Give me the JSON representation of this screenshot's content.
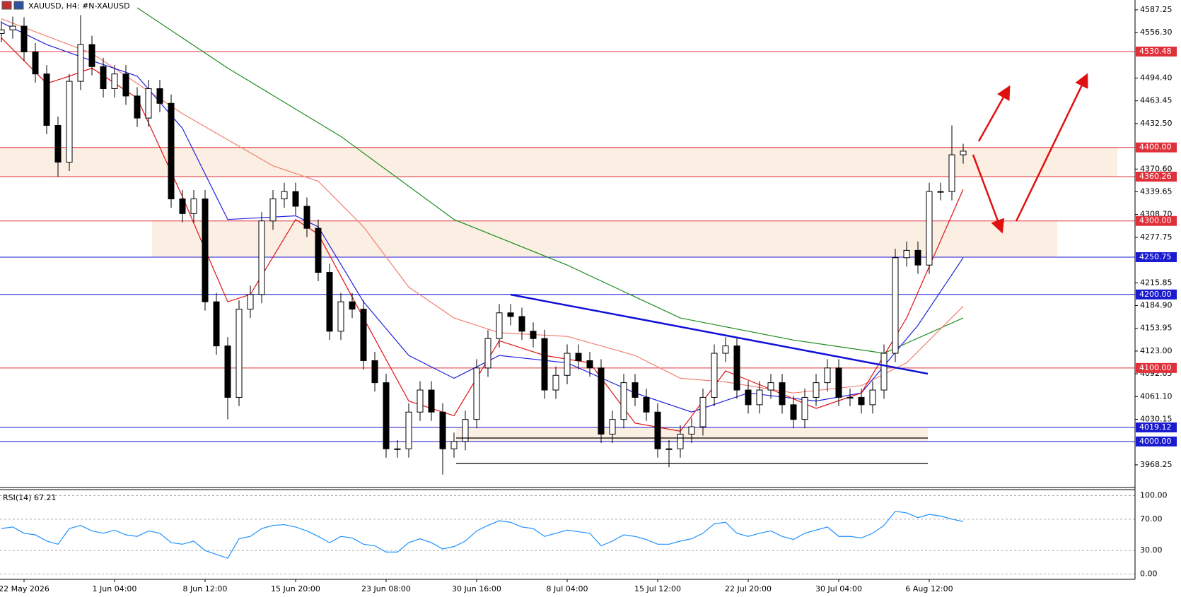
{
  "chart_data": [
    {
      "type": "candlestick",
      "title": "XAUUSD, H4: #N-XAUUSD",
      "color": "#000000",
      "categories": [
        null,
        null,
        "22 May 2026",
        null,
        null,
        null,
        null,
        null,
        null,
        null,
        "1 Jun 04:00",
        null,
        null,
        null,
        null,
        null,
        null,
        null,
        "8 Jun 12:00",
        null,
        null,
        null,
        null,
        null,
        null,
        null,
        "15 Jun 20:00",
        null,
        null,
        null,
        null,
        null,
        null,
        null,
        "23 Jun 08:00",
        null,
        null,
        null,
        null,
        null,
        null,
        null,
        "30 Jun 16:00",
        null,
        null,
        null,
        null,
        null,
        null,
        null,
        "8 Jul 04:00",
        null,
        null,
        null,
        null,
        null,
        null,
        null,
        "15 Jul 12:00",
        null,
        null,
        null,
        null,
        null,
        null,
        null,
        "22 Jul 20:00",
        null,
        null,
        null,
        null,
        null,
        null,
        null,
        "30 Jul 04:00",
        null,
        null,
        null,
        null,
        null,
        null,
        null,
        "6 Aug 12:00",
        null,
        null,
        null
      ],
      "open": [
        4555,
        4560,
        4565,
        4530,
        4500,
        4430,
        4380,
        4490,
        4540,
        4510,
        4480,
        4500,
        4470,
        4440,
        4480,
        4460,
        4330,
        4310,
        4330,
        4190,
        4130,
        4060,
        4180,
        4200,
        4300,
        4330,
        4340,
        4320,
        4290,
        4230,
        4150,
        4190,
        4180,
        4110,
        4080,
        3990,
        3990,
        4040,
        4070,
        4040,
        3990,
        4000,
        4030,
        4100,
        4140,
        4175,
        4170,
        4150,
        4140,
        4070,
        4090,
        4120,
        4110,
        4100,
        4010,
        4030,
        4080,
        4060,
        4040,
        3990,
        3990,
        4010,
        4020,
        4060,
        4120,
        4130,
        4070,
        4050,
        4070,
        4080,
        4050,
        4030,
        4060,
        4080,
        4100,
        4060,
        4060,
        4050,
        4070,
        4120,
        4250,
        4260,
        4240,
        4340,
        4340,
        4390
      ],
      "high": [
        4572,
        4578,
        4577,
        4542,
        4512,
        4442,
        4500,
        4580,
        4552,
        4522,
        4512,
        4512,
        4482,
        4492,
        4492,
        4472,
        4342,
        4342,
        4342,
        4202,
        4142,
        4192,
        4212,
        4312,
        4342,
        4352,
        4352,
        4332,
        4302,
        4242,
        4202,
        4202,
        4192,
        4122,
        4092,
        4002,
        4052,
        4082,
        4082,
        4052,
        4012,
        4042,
        4112,
        4152,
        4187,
        4187,
        4182,
        4162,
        4152,
        4102,
        4132,
        4132,
        4122,
        4112,
        4042,
        4092,
        4092,
        4072,
        4052,
        4002,
        4022,
        4032,
        4072,
        4132,
        4142,
        4142,
        4082,
        4082,
        4092,
        4092,
        4062,
        4072,
        4092,
        4112,
        4112,
        4072,
        4072,
        4082,
        4132,
        4262,
        4272,
        4272,
        4352,
        4352,
        4430,
        4405
      ],
      "low": [
        4543,
        4548,
        4518,
        4488,
        4418,
        4360,
        4368,
        4478,
        4498,
        4468,
        4468,
        4458,
        4428,
        4428,
        4448,
        4318,
        4298,
        4298,
        4178,
        4118,
        4030,
        4048,
        4168,
        4188,
        4288,
        4318,
        4308,
        4278,
        4218,
        4138,
        4138,
        4168,
        4098,
        4068,
        3978,
        3978,
        3978,
        4028,
        4028,
        3955,
        3978,
        3988,
        4018,
        4088,
        4128,
        4158,
        4138,
        4128,
        4058,
        4058,
        4078,
        4098,
        4088,
        3998,
        3998,
        4018,
        4048,
        4028,
        3978,
        3965,
        3978,
        3998,
        4008,
        4048,
        4108,
        4058,
        4038,
        4038,
        4058,
        4038,
        4018,
        4018,
        4048,
        4068,
        4048,
        4048,
        4038,
        4038,
        4058,
        4108,
        4238,
        4228,
        4228,
        4328,
        4328,
        4378
      ],
      "close": [
        4560,
        4565,
        4530,
        4500,
        4430,
        4380,
        4490,
        4540,
        4510,
        4480,
        4500,
        4470,
        4440,
        4480,
        4460,
        4330,
        4310,
        4330,
        4190,
        4130,
        4060,
        4180,
        4200,
        4300,
        4330,
        4340,
        4320,
        4290,
        4230,
        4150,
        4190,
        4180,
        4110,
        4080,
        3990,
        3990,
        4040,
        4070,
        4040,
        3990,
        4000,
        4030,
        4100,
        4140,
        4175,
        4170,
        4150,
        4140,
        4070,
        4090,
        4120,
        4110,
        4100,
        4010,
        4030,
        4080,
        4060,
        4040,
        3990,
        3990,
        4010,
        4020,
        4060,
        4120,
        4130,
        4070,
        4050,
        4070,
        4080,
        4050,
        4030,
        4060,
        4080,
        4100,
        4060,
        4060,
        4050,
        4070,
        4120,
        4250,
        4260,
        4240,
        4340,
        4340,
        4390,
        4395
      ],
      "overlays": [
        {
          "color": "#1e8c1e",
          "x": [
            12,
            20,
            30,
            40,
            50,
            60,
            70,
            78,
            85
          ],
          "values": [
            4590,
            4508,
            4415,
            4302,
            4240,
            4168,
            4138,
            4120,
            4168
          ]
        },
        {
          "color": "#f08070",
          "x": [
            0,
            8,
            16,
            24,
            28,
            32,
            36,
            40,
            44,
            50,
            56,
            60,
            64,
            70,
            76,
            80,
            85
          ],
          "values": [
            4575,
            4528,
            4446,
            4375,
            4354,
            4292,
            4210,
            4168,
            4148,
            4143,
            4117,
            4086,
            4081,
            4066,
            4076,
            4107,
            4184
          ]
        },
        {
          "color": "#2020e0",
          "x": [
            0,
            4,
            8,
            12,
            16,
            20,
            26,
            28,
            32,
            36,
            40,
            44,
            50,
            56,
            61,
            66,
            72,
            76,
            81,
            85
          ],
          "values": [
            4570,
            4540,
            4518,
            4497,
            4426,
            4302,
            4307,
            4292,
            4190,
            4117,
            4086,
            4117,
            4107,
            4066,
            4040,
            4066,
            4055,
            4066,
            4158,
            4250
          ]
        },
        {
          "color": "#e01010",
          "x": [
            0,
            4,
            6,
            8,
            12,
            16,
            18,
            20,
            22,
            26,
            28,
            32,
            36,
            40,
            44,
            48,
            52,
            56,
            60,
            64,
            68,
            72,
            76,
            80,
            85
          ],
          "values": [
            4549,
            4487,
            4497,
            4508,
            4467,
            4333,
            4261,
            4190,
            4200,
            4302,
            4282,
            4168,
            4055,
            4035,
            4137,
            4117,
            4107,
            4025,
            4014,
            4096,
            4071,
            4045,
            4066,
            4168,
            4343
          ]
        }
      ],
      "levels": [
        {
          "value": 4530.48,
          "label": "4530.48",
          "color": "#e0303a"
        },
        {
          "value": 4400,
          "label": "4400.00",
          "color": "#e0303a"
        },
        {
          "value": 4360.26,
          "label": "4360.26",
          "color": "#e0303a"
        },
        {
          "value": 4300,
          "label": "4300.00",
          "color": "#e0303a"
        },
        {
          "value": 4250.75,
          "label": "4250.75",
          "color": "#1a1ad0"
        },
        {
          "value": 4200,
          "label": "4200.00",
          "color": "#1a1ad0"
        },
        {
          "value": 4100,
          "label": "4100.00",
          "color": "#e0303a"
        },
        {
          "value": 4019.12,
          "label": "4019.12",
          "color": "#1a1ad0"
        },
        {
          "value": 4000,
          "label": "4000.00",
          "color": "#1a1ad0"
        }
      ],
      "ylim": [
        3937.4,
        4600.6
      ],
      "yticks": [
        4587.25,
        {
          "value": 4556.3,
          "label": "4556.30"
        },
        {
          "value": 4494.4,
          "label": "4494.40"
        },
        4463.45,
        {
          "value": 4432.5,
          "label": "4432.50"
        },
        {
          "value": 4370.6,
          "label": "4370.60"
        },
        4339.65,
        {
          "value": 4308.7,
          "label": "4308.70"
        },
        4277.75,
        4215.85,
        {
          "value": 4184.9,
          "label": "4184.90"
        },
        4153.95,
        {
          "value": 4123,
          "label": "4123.00"
        },
        4092.05,
        {
          "value": 4061.1,
          "label": "4061.10"
        },
        4030.15,
        3968.25
      ]
    },
    {
      "type": "line",
      "title": "RSI(14) 67.21",
      "color": "#1e90ff",
      "values": [
        58,
        60,
        52,
        50,
        42,
        38,
        58,
        62,
        55,
        52,
        56,
        50,
        48,
        55,
        52,
        40,
        38,
        42,
        30,
        25,
        20,
        45,
        48,
        58,
        62,
        63,
        60,
        55,
        48,
        40,
        48,
        46,
        38,
        36,
        28,
        28,
        40,
        45,
        40,
        32,
        35,
        42,
        55,
        62,
        68,
        66,
        60,
        58,
        48,
        52,
        56,
        54,
        52,
        36,
        42,
        50,
        48,
        44,
        38,
        38,
        42,
        45,
        52,
        64,
        66,
        52,
        48,
        52,
        55,
        48,
        44,
        52,
        56,
        60,
        48,
        48,
        46,
        52,
        62,
        80,
        78,
        72,
        76,
        74,
        70,
        67
      ],
      "ylim": [
        -5,
        105
      ],
      "yticks": [
        {
          "value": 100,
          "label": "100.00"
        },
        {
          "value": 70,
          "label": "70.00"
        },
        {
          "value": 30,
          "label": "30.00"
        },
        {
          "value": 0,
          "label": "0.00"
        }
      ]
    }
  ]
}
